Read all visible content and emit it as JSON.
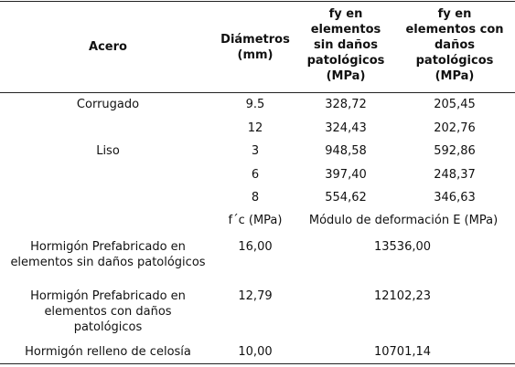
{
  "header": {
    "acero": "Acero",
    "diametros": [
      "Diámetros",
      "(mm)"
    ],
    "fy_sin": [
      "fy en",
      "elementos",
      "sin daños",
      "patológicos",
      "(MPa)"
    ],
    "fy_con": [
      "fy en",
      "elementos con",
      "daños",
      "patológicos",
      "(MPa)"
    ]
  },
  "steel_rows": [
    {
      "type": "Corrugado",
      "diameter": "9.5",
      "fy_sin": "328,72",
      "fy_con": "205,45"
    },
    {
      "type": "",
      "diameter": "12",
      "fy_sin": "324,43",
      "fy_con": "202,76"
    },
    {
      "type": "Liso",
      "diameter": "3",
      "fy_sin": "948,58",
      "fy_con": "592,86"
    },
    {
      "type": "",
      "diameter": "6",
      "fy_sin": "397,40",
      "fy_con": "248,37"
    },
    {
      "type": "",
      "diameter": "8",
      "fy_sin": "554,62",
      "fy_con": "346,63"
    }
  ],
  "concrete_header": {
    "fc": "f´c (MPa)",
    "modulo": "Módulo de deformación E (MPa)"
  },
  "concrete_rows": [
    {
      "type": [
        "Hormigón Prefabricado en",
        "elementos sin daños patológicos"
      ],
      "fc": "16,00",
      "e": "13536,00"
    },
    {
      "type": [
        "Hormigón Prefabricado en",
        "elementos con daños",
        "patológicos"
      ],
      "fc": "12,79",
      "e": "12102,23"
    },
    {
      "type": [
        "Hormigón relleno de celosía"
      ],
      "fc": "10,00",
      "e": "10701,14"
    }
  ]
}
